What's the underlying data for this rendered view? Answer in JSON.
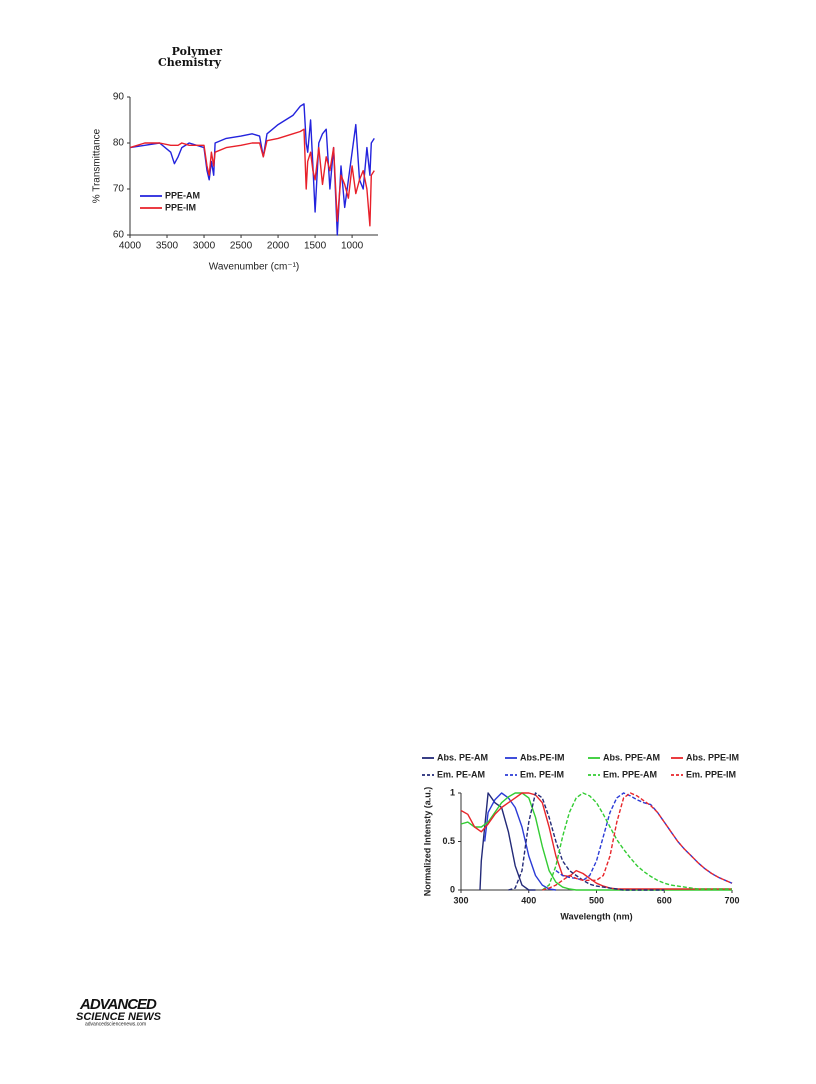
{
  "header": {
    "line1": "Polymer",
    "line2": "Chemistry"
  },
  "footer": {
    "brand1": "ADVANCED",
    "brand2": "SCIENCE NEWS",
    "url": "advancedsciencenews.com"
  },
  "chart_data": [
    {
      "type": "line",
      "x_label": "Wavenumber (cm⁻¹)",
      "y_label": "% Transmittance",
      "xlim": [
        4000,
        650
      ],
      "xticks": [
        4000,
        3500,
        3000,
        2500,
        2000,
        1500,
        1000
      ],
      "ylim": [
        60,
        90
      ],
      "yticks": [
        60,
        70,
        80,
        90
      ],
      "x": [
        4000,
        3800,
        3600,
        3450,
        3400,
        3350,
        3300,
        3200,
        3000,
        2960,
        2930,
        2900,
        2870,
        2850,
        2700,
        2500,
        2350,
        2250,
        2200,
        2150,
        2000,
        1800,
        1700,
        1650,
        1620,
        1600,
        1560,
        1530,
        1500,
        1450,
        1400,
        1350,
        1300,
        1250,
        1200,
        1150,
        1100,
        1050,
        1000,
        950,
        900,
        850,
        800,
        760,
        740,
        700
      ],
      "series": [
        {
          "name": "PPE-AM",
          "color": "#2323dd",
          "dashed": false,
          "values": [
            79,
            79.5,
            80,
            78,
            75.5,
            77,
            79,
            80,
            79,
            74,
            72,
            76,
            73,
            80,
            81,
            81.5,
            82,
            81.5,
            77,
            82,
            84,
            86,
            88,
            88.5,
            80,
            78,
            85,
            75,
            65,
            80,
            82,
            83,
            70,
            79,
            60,
            75,
            66,
            72,
            78,
            84,
            72,
            70,
            79,
            73,
            80,
            81
          ]
        },
        {
          "name": "PPE-IM",
          "color": "#e8202a",
          "dashed": false,
          "values": [
            79,
            80,
            80,
            79.5,
            79.5,
            79.5,
            80,
            79.5,
            79.5,
            75,
            73,
            78,
            75,
            78,
            79,
            79.5,
            80,
            80,
            77,
            80.5,
            81,
            82,
            82.5,
            83,
            70,
            76,
            78,
            74,
            72,
            79,
            71,
            77,
            74,
            79,
            63,
            73,
            71,
            68,
            75,
            69,
            72,
            74,
            70,
            62,
            73,
            74
          ]
        }
      ]
    },
    {
      "type": "line",
      "x_label": "Wavelength (nm)",
      "y_label": "Normalized Intensty (a.u.)",
      "xlim": [
        300,
        700
      ],
      "xticks": [
        300,
        400,
        500,
        600,
        700
      ],
      "ylim": [
        0,
        1
      ],
      "yticks": [
        0,
        0.5,
        1
      ],
      "series": [
        {
          "name": "Abs. PE-AM",
          "color": "#232a78",
          "dashed": false,
          "x": [
            328,
            330,
            340,
            350,
            360,
            370,
            380,
            390,
            400,
            410
          ],
          "values": [
            0,
            0.3,
            1,
            0.9,
            0.85,
            0.6,
            0.25,
            0.05,
            0,
            0
          ]
        },
        {
          "name": "Abs.PE-IM",
          "color": "#2b3bd6",
          "dashed": false,
          "x": [
            335,
            340,
            350,
            360,
            370,
            380,
            390,
            400,
            410,
            420,
            430,
            440
          ],
          "values": [
            0.5,
            0.8,
            0.93,
            1,
            0.95,
            0.85,
            0.65,
            0.35,
            0.15,
            0.05,
            0.01,
            0
          ]
        },
        {
          "name": "Abs. PPE-AM",
          "color": "#33cc33",
          "dashed": false,
          "x": [
            300,
            310,
            320,
            330,
            340,
            350,
            360,
            370,
            380,
            390,
            400,
            410,
            420,
            430,
            440,
            450,
            460,
            470,
            700
          ],
          "values": [
            0.68,
            0.7,
            0.65,
            0.65,
            0.7,
            0.8,
            0.9,
            0.96,
            1,
            1,
            0.95,
            0.75,
            0.45,
            0.2,
            0.08,
            0.03,
            0.01,
            0,
            0
          ]
        },
        {
          "name": "Abs. PPE-IM",
          "color": "#e8262b",
          "dashed": false,
          "x": [
            300,
            310,
            320,
            330,
            340,
            350,
            360,
            370,
            380,
            390,
            400,
            410,
            420,
            430,
            440,
            450,
            460,
            470,
            480,
            490,
            500,
            510,
            520,
            530,
            700
          ],
          "values": [
            0.82,
            0.78,
            0.65,
            0.6,
            0.68,
            0.78,
            0.85,
            0.9,
            0.95,
            1,
            1,
            0.98,
            0.9,
            0.65,
            0.35,
            0.15,
            0.14,
            0.2,
            0.17,
            0.12,
            0.07,
            0.04,
            0.02,
            0.01,
            0.01
          ]
        },
        {
          "name": "Em. PE-AM",
          "color": "#232a78",
          "dashed": true,
          "x": [
            370,
            380,
            390,
            400,
            410,
            420,
            430,
            440,
            450,
            460,
            470,
            480,
            490,
            500,
            510,
            520,
            530,
            540,
            600
          ],
          "values": [
            0,
            0.02,
            0.2,
            0.7,
            1,
            0.95,
            0.75,
            0.5,
            0.3,
            0.2,
            0.15,
            0.1,
            0.06,
            0.04,
            0.03,
            0.02,
            0.01,
            0,
            0
          ]
        },
        {
          "name": "Em. PE-IM",
          "color": "#2b3bd6",
          "dashed": true,
          "x": [
            440,
            450,
            460,
            470,
            480,
            490,
            500,
            510,
            520,
            530,
            540,
            550,
            560,
            570,
            580,
            590,
            600,
            610,
            620,
            630,
            640,
            650,
            660,
            670,
            680,
            690,
            700
          ],
          "values": [
            0.2,
            0.15,
            0.13,
            0.12,
            0.1,
            0.15,
            0.3,
            0.55,
            0.8,
            0.95,
            1,
            0.97,
            0.93,
            0.9,
            0.88,
            0.8,
            0.7,
            0.6,
            0.5,
            0.42,
            0.35,
            0.28,
            0.22,
            0.17,
            0.13,
            0.1,
            0.07
          ]
        },
        {
          "name": "Em. PPE-AM",
          "color": "#33cc33",
          "dashed": true,
          "x": [
            420,
            430,
            440,
            450,
            460,
            470,
            480,
            490,
            500,
            510,
            520,
            530,
            540,
            550,
            560,
            570,
            580,
            590,
            600,
            610,
            620,
            630,
            640,
            650,
            660,
            670,
            680,
            690,
            700
          ],
          "values": [
            0,
            0.05,
            0.25,
            0.55,
            0.8,
            0.95,
            1,
            0.97,
            0.9,
            0.78,
            0.65,
            0.52,
            0.42,
            0.33,
            0.25,
            0.19,
            0.14,
            0.1,
            0.07,
            0.05,
            0.04,
            0.03,
            0.02,
            0.01,
            0.01,
            0.01,
            0.01,
            0.01,
            0.01
          ]
        },
        {
          "name": "Em. PPE-IM",
          "color": "#e8262b",
          "dashed": true,
          "x": [
            420,
            430,
            440,
            450,
            460,
            470,
            480,
            490,
            500,
            510,
            520,
            530,
            540,
            550,
            560,
            570,
            580,
            590,
            600,
            610,
            620,
            630,
            640,
            650,
            660,
            670,
            680,
            690,
            700
          ],
          "values": [
            0,
            0.02,
            0.05,
            0.1,
            0.15,
            0.12,
            0.1,
            0.1,
            0.1,
            0.15,
            0.35,
            0.7,
            0.95,
            1,
            0.97,
            0.92,
            0.87,
            0.8,
            0.7,
            0.6,
            0.5,
            0.42,
            0.35,
            0.28,
            0.22,
            0.17,
            0.13,
            0.1,
            0.07
          ]
        }
      ]
    }
  ]
}
